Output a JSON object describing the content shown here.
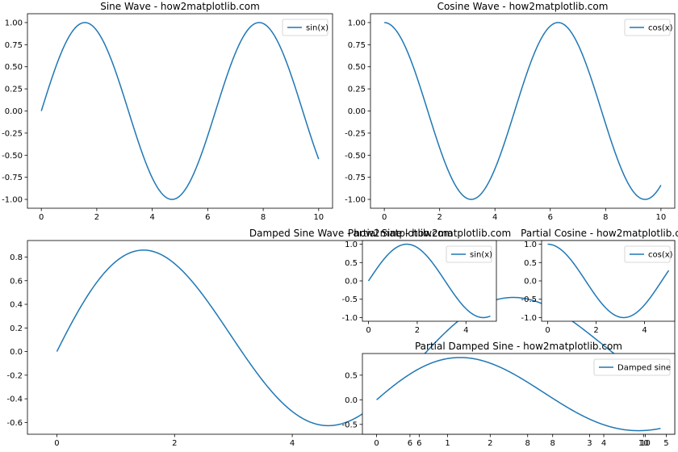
{
  "chart_data": [
    {
      "id": "sine",
      "type": "line",
      "title": "Sine Wave - how2matplotlib.com",
      "function": "sin",
      "x_range": [
        0,
        10
      ],
      "xlim": [
        -0.5,
        10.5
      ],
      "ylim": [
        -1.1,
        1.1
      ],
      "xticks": [
        0,
        2,
        4,
        6,
        8,
        10
      ],
      "yticks": [
        -1.0,
        -0.75,
        -0.5,
        -0.25,
        0.0,
        0.25,
        0.5,
        0.75,
        1.0
      ],
      "ytick_decimals": 2,
      "series": [
        {
          "name": "sin(x)"
        }
      ],
      "legend": "upper-right"
    },
    {
      "id": "cosine",
      "type": "line",
      "title": "Cosine Wave - how2matplotlib.com",
      "function": "cos",
      "x_range": [
        0,
        10
      ],
      "xlim": [
        -0.5,
        10.5
      ],
      "ylim": [
        -1.1,
        1.1
      ],
      "xticks": [
        0,
        2,
        4,
        6,
        8,
        10
      ],
      "yticks": [
        -1.0,
        -0.75,
        -0.5,
        -0.25,
        0.0,
        0.25,
        0.5,
        0.75,
        1.0
      ],
      "ytick_decimals": 2,
      "series": [
        {
          "name": "cos(x)"
        }
      ],
      "legend": "upper-right"
    },
    {
      "id": "damped",
      "type": "line",
      "title": "Damped Sine Wave - how2matplotlib.com",
      "function": "damped",
      "x_range": [
        0,
        10
      ],
      "xlim": [
        -0.5,
        10.5
      ],
      "ylim": [
        -0.7,
        0.94
      ],
      "xticks": [
        0,
        2,
        4,
        6,
        8,
        10
      ],
      "yticks": [
        -0.6,
        -0.4,
        -0.2,
        0.0,
        0.2,
        0.4,
        0.6,
        0.8
      ],
      "ytick_decimals": 1,
      "series": [
        {
          "name": "Damped sine"
        }
      ],
      "legend": "upper-right"
    },
    {
      "id": "partial-sine",
      "type": "line",
      "title": "Partial Sine - how2matplotlib.com",
      "function": "sin",
      "x_range": [
        0,
        5
      ],
      "xlim": [
        -0.25,
        5.25
      ],
      "ylim": [
        -1.1,
        1.1
      ],
      "xticks": [
        0,
        2,
        4
      ],
      "yticks": [
        -1.0,
        -0.5,
        0.0,
        0.5,
        1.0
      ],
      "ytick_decimals": 1,
      "series": [
        {
          "name": "sin(x)"
        }
      ],
      "legend": "upper-right"
    },
    {
      "id": "partial-cosine",
      "type": "line",
      "title": "Partial Cosine - how2matplotlib.com",
      "function": "cos",
      "x_range": [
        0,
        5
      ],
      "xlim": [
        -0.25,
        5.25
      ],
      "ylim": [
        -1.1,
        1.1
      ],
      "xticks": [
        0,
        2,
        4
      ],
      "yticks": [
        -1.0,
        -0.5,
        0.0,
        0.5,
        1.0
      ],
      "ytick_decimals": 1,
      "series": [
        {
          "name": "cos(x)"
        }
      ],
      "legend": "upper-right"
    },
    {
      "id": "partial-damped",
      "type": "line",
      "title": "Partial Damped Sine - how2matplotlib.com",
      "function": "damped",
      "x_range": [
        0,
        5
      ],
      "xlim": [
        -0.25,
        5.25
      ],
      "ylim": [
        -0.7,
        0.94
      ],
      "xticks": [
        0,
        2,
        4
      ],
      "yticks": [
        -0.5,
        0.0,
        0.5
      ],
      "ytick_decimals": 1,
      "series": [
        {
          "name": "Damped sine"
        }
      ],
      "legend": "upper-right",
      "overlay_xticks": [
        {
          "label": "6",
          "at": 0.75
        },
        {
          "label": "1",
          "at": 1.25
        },
        {
          "label": "8",
          "at": 3.1
        },
        {
          "label": "3",
          "at": 3.75
        },
        {
          "label": "10",
          "at": 4.7
        },
        {
          "label": "5",
          "at": 5.1
        }
      ]
    }
  ]
}
